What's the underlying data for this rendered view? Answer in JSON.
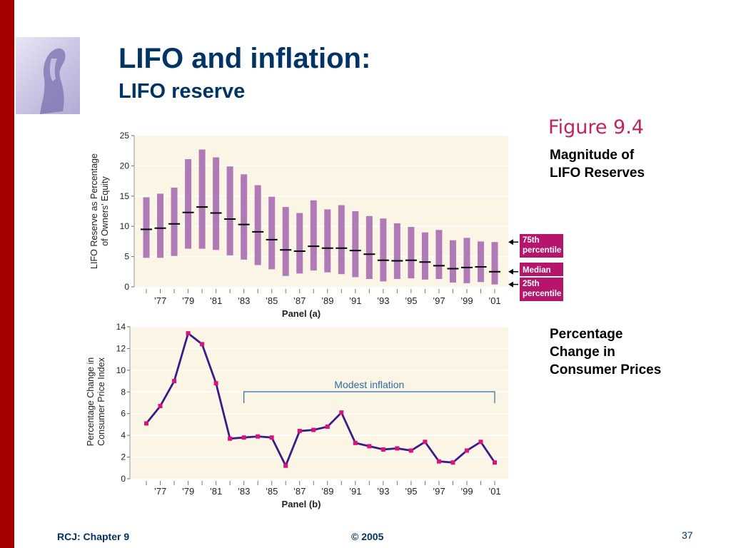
{
  "slide": {
    "title": "LIFO and inflation:",
    "subtitle": "LIFO reserve",
    "figure_label": "Figure 9.4",
    "note_top": [
      "Magnitude of",
      "LIFO Reserves"
    ],
    "note_bottom": [
      "Percentage",
      "Change in",
      "Consumer Prices"
    ],
    "footer_left": "RCJ: Chapter 9",
    "footer_center": "© 2005",
    "page_number": "37"
  },
  "colors": {
    "bar": "#b07ab7",
    "line": "#3c1a8c",
    "marker": "#d8137a",
    "plot_bg": "#fbf5e6",
    "legend_bg": "#b5156b",
    "bracket": "#2f6aa6",
    "axis_text": "#222222"
  },
  "chart_data": [
    {
      "type": "bar",
      "subtype": "range-with-median",
      "ylabel": [
        "LIFO Reserve as Percentage",
        "of Owners' Equity"
      ],
      "xlabel": "Panel (a)",
      "ylim": [
        0,
        25
      ],
      "yticks": [
        0,
        5,
        10,
        15,
        20,
        25
      ],
      "xtick_labels": [
        "’77",
        "’79",
        "’81",
        "’83",
        "’85",
        "’87",
        "’89",
        "’91",
        "’93",
        "’95",
        "’97",
        "’99",
        "’01"
      ],
      "x": [
        1976,
        1977,
        1978,
        1979,
        1980,
        1981,
        1982,
        1983,
        1984,
        1985,
        1986,
        1987,
        1988,
        1989,
        1990,
        1991,
        1992,
        1993,
        1994,
        1995,
        1996,
        1997,
        1998,
        1999,
        2000,
        2001
      ],
      "series": [
        {
          "name": "75th percentile",
          "values": [
            14.8,
            15.4,
            16.4,
            21.1,
            22.7,
            21.4,
            19.9,
            18.6,
            16.8,
            14.9,
            13.2,
            12.2,
            14.3,
            12.8,
            13.5,
            12.5,
            11.7,
            11.3,
            10.5,
            9.9,
            9.0,
            9.4,
            7.7,
            8.1,
            7.5,
            7.4
          ]
        },
        {
          "name": "Median",
          "values": [
            9.5,
            9.7,
            10.4,
            12.3,
            13.2,
            12.2,
            11.2,
            10.3,
            9.1,
            7.8,
            6.1,
            5.9,
            6.7,
            6.4,
            6.4,
            6.0,
            5.4,
            4.4,
            4.3,
            4.4,
            4.1,
            3.5,
            3.0,
            3.2,
            3.3,
            2.5
          ]
        },
        {
          "name": "25th percentile",
          "values": [
            4.8,
            4.8,
            5.1,
            6.3,
            6.3,
            6.1,
            5.2,
            4.5,
            3.6,
            2.9,
            1.8,
            2.2,
            2.7,
            2.4,
            2.1,
            1.6,
            1.3,
            0.9,
            1.3,
            1.4,
            1.2,
            1.3,
            0.7,
            0.6,
            0.8,
            0.4
          ]
        }
      ],
      "legend": [
        "75th percentile",
        "Median",
        "25th percentile"
      ],
      "legend_position": "right"
    },
    {
      "type": "line",
      "ylabel": [
        "Percentage Change in",
        "Consumer Price Index"
      ],
      "xlabel": "Panel (b)",
      "ylim": [
        0,
        14
      ],
      "yticks": [
        0,
        2,
        4,
        6,
        8,
        10,
        12,
        14
      ],
      "xtick_labels": [
        "’77",
        "’79",
        "’81",
        "’83",
        "’85",
        "’87",
        "’89",
        "’91",
        "’93",
        "’95",
        "’97",
        "’99",
        "’01"
      ],
      "x": [
        1976,
        1977,
        1978,
        1979,
        1980,
        1981,
        1982,
        1983,
        1984,
        1985,
        1986,
        1987,
        1988,
        1989,
        1990,
        1991,
        1992,
        1993,
        1994,
        1995,
        1996,
        1997,
        1998,
        1999,
        2000,
        2001
      ],
      "values": [
        5.1,
        6.7,
        9.0,
        13.4,
        12.4,
        8.8,
        3.7,
        3.8,
        3.9,
        3.8,
        1.2,
        4.4,
        4.5,
        4.8,
        6.1,
        3.3,
        3.0,
        2.7,
        2.8,
        2.6,
        3.4,
        1.6,
        1.5,
        2.6,
        3.4,
        1.5
      ],
      "annotation": {
        "text": "Modest inflation",
        "x_start": 1983,
        "x_end": 2001
      }
    }
  ]
}
